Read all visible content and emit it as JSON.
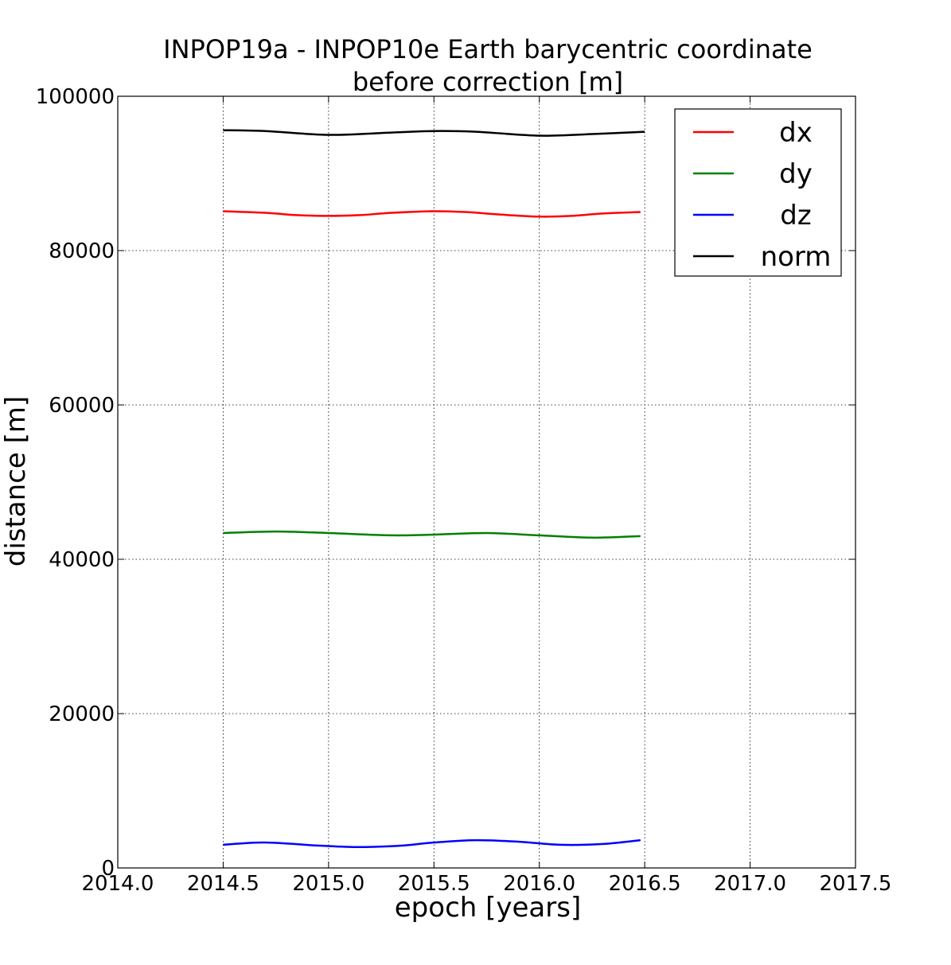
{
  "chart_data": {
    "type": "line",
    "title": "INPOP19a - INPOP10e Earth barycentric coordinate\nbefore correction [m]",
    "xlabel": "epoch [years]",
    "ylabel": "distance [m]",
    "xlim": [
      2014.0,
      2017.5
    ],
    "ylim": [
      0,
      100000
    ],
    "xticks": [
      "2014.0",
      "2014.5",
      "2015.0",
      "2015.5",
      "2016.0",
      "2016.5",
      "2017.0",
      "2017.5"
    ],
    "yticks": [
      "0",
      "20000",
      "40000",
      "60000",
      "80000",
      "100000"
    ],
    "grid": true,
    "legend_position": "top-right",
    "series": [
      {
        "name": "dx",
        "color": "#ff0000",
        "x": [
          2014.5,
          2014.7,
          2014.85,
          2015.0,
          2015.15,
          2015.3,
          2015.5,
          2015.65,
          2015.8,
          2016.0,
          2016.15,
          2016.3,
          2016.48
        ],
        "y": [
          85100,
          84900,
          84600,
          84500,
          84600,
          84900,
          85100,
          85000,
          84700,
          84400,
          84500,
          84800,
          85000
        ]
      },
      {
        "name": "dy",
        "color": "#008000",
        "x": [
          2014.5,
          2014.75,
          2015.0,
          2015.3,
          2015.5,
          2015.75,
          2016.0,
          2016.25,
          2016.48
        ],
        "y": [
          43400,
          43600,
          43400,
          43100,
          43200,
          43400,
          43100,
          42800,
          43000
        ]
      },
      {
        "name": "dz",
        "color": "#0000ff",
        "x": [
          2014.5,
          2014.7,
          2014.95,
          2015.15,
          2015.35,
          2015.5,
          2015.7,
          2015.9,
          2016.1,
          2016.3,
          2016.48
        ],
        "y": [
          3000,
          3300,
          2900,
          2700,
          2900,
          3300,
          3600,
          3400,
          3000,
          3100,
          3600
        ]
      },
      {
        "name": "norm",
        "color": "#000000",
        "x": [
          2014.5,
          2014.7,
          2015.0,
          2015.3,
          2015.5,
          2015.7,
          2016.0,
          2016.25,
          2016.5
        ],
        "y": [
          95600,
          95500,
          95000,
          95300,
          95500,
          95400,
          94900,
          95100,
          95400
        ]
      }
    ]
  }
}
